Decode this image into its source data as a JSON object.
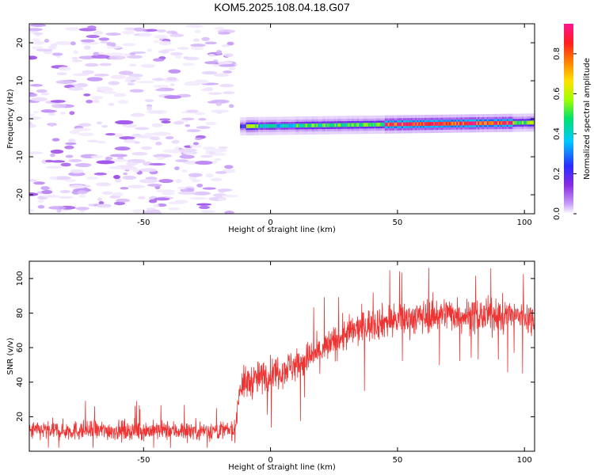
{
  "title": "KOM5.2025.108.04.18.G07",
  "chart_data": [
    {
      "type": "heatmap",
      "name": "spectrogram",
      "xlabel": "Height of straight line (km)",
      "ylabel": "Frequency (Hz)",
      "xlim": [
        -95,
        104
      ],
      "ylim": [
        -25,
        25
      ],
      "xticks": [
        -50,
        0,
        50,
        100
      ],
      "yticks": [
        -20,
        -10,
        0,
        10,
        20
      ],
      "colorbar": {
        "label": "Normalized spectral amplitude",
        "range": [
          0.0,
          0.95
        ],
        "ticks": [
          0.0,
          0.2,
          0.4,
          0.6,
          0.8
        ],
        "colormap": [
          "#ffffff",
          "#c8a0f8",
          "#8a2be2",
          "#2b2bff",
          "#00c8ff",
          "#00e070",
          "#a0ff00",
          "#ffe000",
          "#ff8000",
          "#ff1e1e",
          "#ff1493"
        ]
      },
      "noise_region_km": [
        -95,
        -15
      ],
      "signal": {
        "onset_km": -12,
        "freq_start_hz": -2,
        "freq_end_hz": -1,
        "peak_segments": [
          {
            "from_km": -10,
            "to_km": -5,
            "amp": 0.6
          },
          {
            "from_km": -5,
            "to_km": 10,
            "amp": 0.45
          },
          {
            "from_km": 10,
            "to_km": 45,
            "amp": 0.55
          },
          {
            "from_km": 45,
            "to_km": 95,
            "amp": 0.95
          },
          {
            "from_km": 95,
            "to_km": 104,
            "amp": 0.6
          }
        ]
      }
    },
    {
      "type": "line",
      "name": "snr",
      "xlabel": "Height of straight line (km)",
      "ylabel": "SNR (v/v)",
      "xlim": [
        -95,
        104
      ],
      "ylim": [
        0,
        110
      ],
      "xticks": [
        -50,
        0,
        50,
        100
      ],
      "yticks": [
        20,
        40,
        60,
        80,
        100
      ],
      "color": "#ee3333",
      "trend": {
        "x": [
          -95,
          -60,
          -30,
          -14,
          -12,
          0,
          10,
          20,
          30,
          40,
          50,
          60,
          70,
          80,
          90,
          100,
          104
        ],
        "y": [
          12,
          12,
          12,
          12,
          38,
          45,
          50,
          58,
          68,
          74,
          76,
          78,
          80,
          78,
          79,
          78,
          76
        ]
      },
      "noise_amplitude": [
        {
          "from_km": -95,
          "to_km": -12,
          "amp": 8
        },
        {
          "from_km": -12,
          "to_km": 104,
          "amp": 14
        }
      ]
    }
  ]
}
